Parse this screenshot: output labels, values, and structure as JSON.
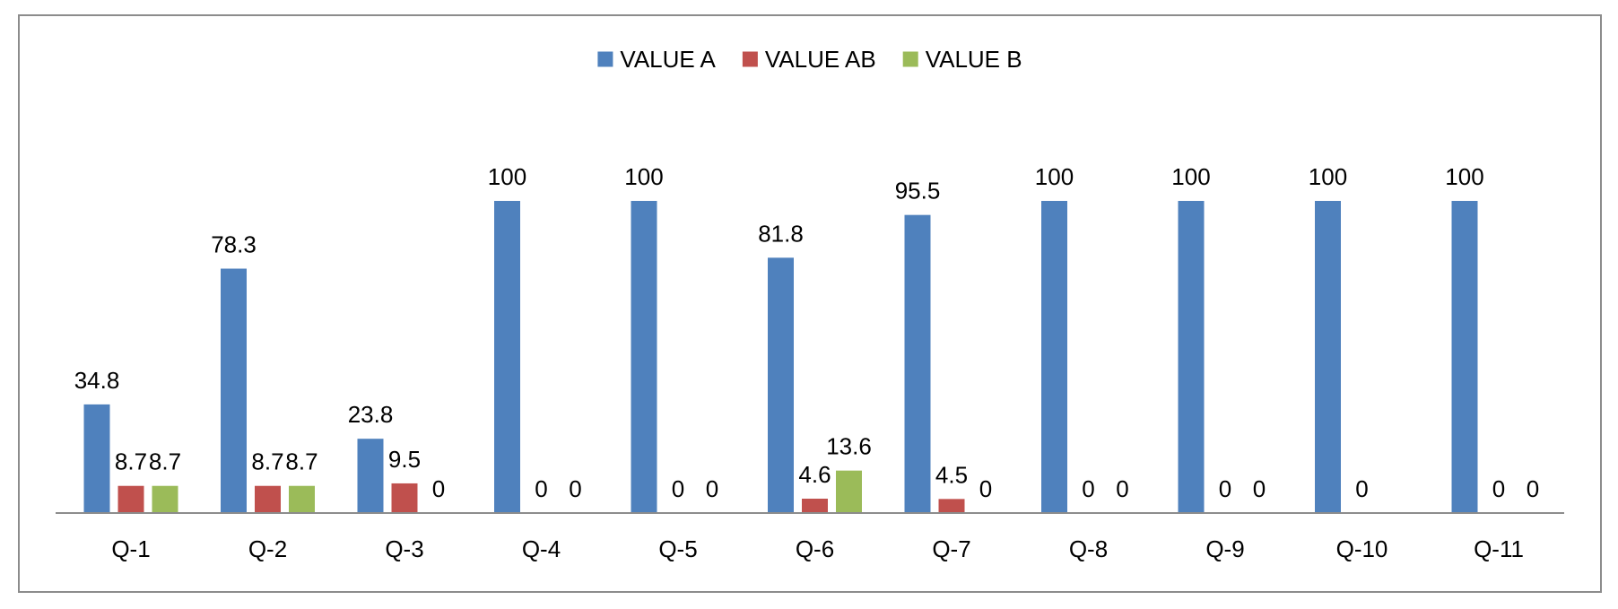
{
  "chart_data": {
    "type": "bar",
    "categories": [
      "Q-1",
      "Q-2",
      "Q-3",
      "Q-4",
      "Q-5",
      "Q-6",
      "Q-7",
      "Q-8",
      "Q-9",
      "Q-10",
      "Q-11"
    ],
    "series": [
      {
        "name": "VALUE A",
        "color": "#4F81BD",
        "values": [
          34.8,
          78.3,
          23.8,
          100,
          100,
          81.8,
          95.5,
          100,
          100,
          100,
          100
        ],
        "labels": [
          "34.8",
          "78.3",
          "23.8",
          "100",
          "100",
          "81.8",
          "95.5",
          "100",
          "100",
          "100",
          "100"
        ]
      },
      {
        "name": "VALUE AB",
        "color": "#C0504D",
        "values": [
          8.7,
          8.7,
          9.5,
          0,
          0,
          4.6,
          4.5,
          0,
          0,
          0,
          0
        ],
        "labels": [
          "8.7",
          "8.7",
          "9.5",
          "0",
          "0",
          "4.6",
          "4.5",
          "0",
          "0",
          "0",
          "0"
        ]
      },
      {
        "name": "VALUE B",
        "color": "#9BBB59",
        "values": [
          8.7,
          8.7,
          0,
          0,
          0,
          13.6,
          0,
          0,
          0,
          null,
          0
        ],
        "labels": [
          "8.7",
          "8.7",
          "0",
          "0",
          "0",
          "13.6",
          "0",
          "0",
          "0",
          null,
          "0"
        ]
      }
    ],
    "ylim": [
      0,
      100
    ],
    "grid": false,
    "legend_position": "top-center",
    "axis_color": "#8c8c8c"
  }
}
